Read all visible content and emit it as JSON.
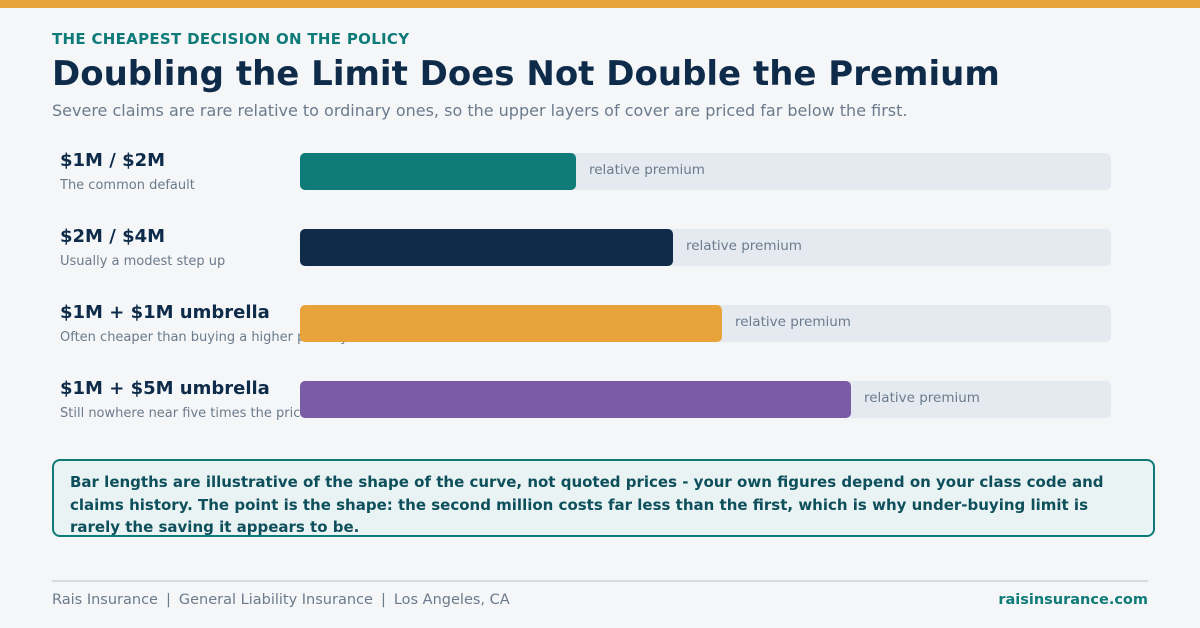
{
  "header": {
    "eyebrow": "THE CHEAPEST DECISION ON THE POLICY",
    "title": "Doubling the Limit Does Not Double the Premium",
    "subtitle": "Severe claims are rare relative to ordinary ones, so the upper layers of cover are priced far below the first."
  },
  "colors": {
    "accent_top": "#e8a33a",
    "teal": "#0f7b79",
    "navy": "#0e2b4a",
    "track": "#e5eaf0"
  },
  "chart_data": {
    "type": "bar",
    "orientation": "horizontal",
    "title": "",
    "xlabel": "",
    "ylabel": "",
    "xlim": [
      0,
      100
    ],
    "grid": false,
    "categories": [
      "$1M / $2M",
      "$2M / $4M",
      "$1M + $1M umbrella",
      "$1M + $5M umbrella"
    ],
    "notes": [
      "The common default",
      "Usually a modest step up",
      "Often cheaper than buying a higher primary",
      "Still nowhere near five times the price"
    ],
    "values": [
      34,
      46,
      52,
      68
    ],
    "colors": [
      "#0f7b79",
      "#0e2b4a",
      "#e8a33a",
      "#7a5ba6"
    ],
    "bar_label": "relative premium"
  },
  "callout": {
    "text": "Bar lengths are illustrative of the shape of the curve, not quoted prices - your own figures depend on your class code and claims history. The point is the shape: the second million costs far less than the first, which is why under-buying limit is rarely the saving it appears to be."
  },
  "footer": {
    "items": [
      "Rais Insurance",
      "General Liability Insurance",
      "Los Angeles, CA"
    ],
    "separator": "|",
    "site": "raisinsurance.com"
  }
}
